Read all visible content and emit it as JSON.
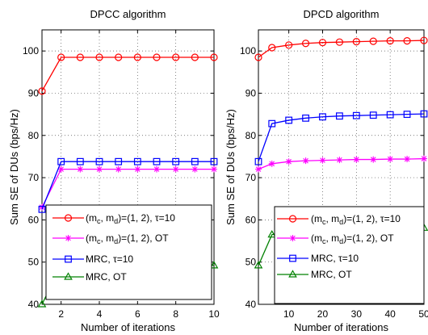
{
  "chart_data": [
    {
      "type": "line",
      "title": "DPCC algorithm",
      "xlabel": "Number of iterations",
      "ylabel": "Sum SE of DUs (bps/Hz)",
      "xlim": [
        1,
        10
      ],
      "ylim": [
        40,
        105
      ],
      "xticks": [
        "2",
        "4",
        "6",
        "8",
        "10"
      ],
      "yticks": [
        "40",
        "50",
        "60",
        "70",
        "80",
        "90",
        "100"
      ],
      "grid": true,
      "legend_position": "center-right",
      "x": [
        1,
        2,
        3,
        4,
        5,
        6,
        7,
        8,
        9,
        10
      ],
      "series": [
        {
          "legend": [
            "(m",
            "c",
            ", m",
            "d",
            ")=(1, 2), τ=10"
          ],
          "color": "#ff0000",
          "marker": "circle",
          "values": [
            90.5,
            98.5,
            98.5,
            98.5,
            98.5,
            98.5,
            98.5,
            98.5,
            98.5,
            98.5
          ]
        },
        {
          "legend": [
            "(m",
            "c",
            ", m",
            "d",
            ")=(1, 2), OT"
          ],
          "color": "#ff00ff",
          "marker": "star",
          "values": [
            63.0,
            72.0,
            72.0,
            72.0,
            72.0,
            72.0,
            72.0,
            72.0,
            72.0,
            72.0
          ]
        },
        {
          "legend": [
            "MRC, τ=10"
          ],
          "color": "#0000ff",
          "marker": "square",
          "values": [
            62.5,
            73.8,
            73.8,
            73.8,
            73.8,
            73.8,
            73.8,
            73.8,
            73.8,
            73.8
          ]
        },
        {
          "legend": [
            "MRC, OT"
          ],
          "color": "#008000",
          "marker": "triangle",
          "values": [
            40.0,
            49.2,
            49.2,
            49.2,
            49.2,
            49.2,
            49.2,
            49.2,
            49.2,
            49.2
          ]
        }
      ]
    },
    {
      "type": "line",
      "title": "DPCD algorithm",
      "xlabel": "Number of iterations",
      "ylabel": "Sum SE of DUs (bps/Hz)",
      "xlim": [
        1,
        50
      ],
      "ylim": [
        40,
        105
      ],
      "xticks": [
        "10",
        "20",
        "30",
        "40",
        "50"
      ],
      "yticks": [
        "40",
        "50",
        "60",
        "70",
        "80",
        "90",
        "100"
      ],
      "grid": true,
      "legend_position": "bottom-right",
      "x": [
        1,
        5,
        10,
        15,
        20,
        25,
        30,
        35,
        40,
        45,
        50
      ],
      "series": [
        {
          "legend": [
            "(m",
            "c",
            ", m",
            "d",
            ")=(1, 2), τ=10"
          ],
          "color": "#ff0000",
          "marker": "circle",
          "values": [
            98.5,
            100.8,
            101.4,
            101.8,
            102.0,
            102.1,
            102.2,
            102.3,
            102.4,
            102.4,
            102.5
          ]
        },
        {
          "legend": [
            "(m",
            "c",
            ", m",
            "d",
            ")=(1, 2), OT"
          ],
          "color": "#ff00ff",
          "marker": "star",
          "values": [
            72.0,
            73.3,
            73.8,
            74.0,
            74.1,
            74.2,
            74.3,
            74.3,
            74.4,
            74.4,
            74.5
          ]
        },
        {
          "legend": [
            "MRC, τ=10"
          ],
          "color": "#0000ff",
          "marker": "square",
          "values": [
            73.8,
            82.8,
            83.6,
            84.1,
            84.4,
            84.6,
            84.7,
            84.8,
            84.9,
            85.0,
            85.1
          ]
        },
        {
          "legend": [
            "MRC, OT"
          ],
          "color": "#008000",
          "marker": "triangle",
          "values": [
            49.2,
            56.5,
            57.2,
            57.5,
            57.6,
            57.7,
            57.8,
            57.8,
            57.9,
            58.0,
            58.1
          ]
        }
      ]
    }
  ]
}
